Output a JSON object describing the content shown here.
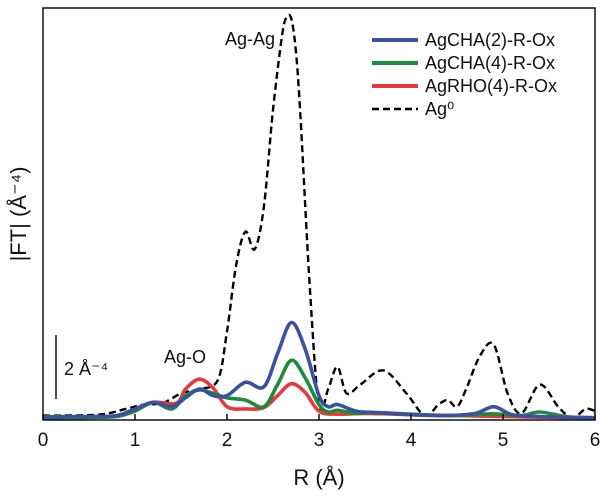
{
  "chart_data": {
    "type": "line",
    "title": "",
    "xlabel": "R (Å)",
    "ylabel": "|FT| (Å⁻⁴)",
    "xlim": [
      0,
      6
    ],
    "ylim": [
      0,
      9.3
    ],
    "xticks": [
      "0",
      "1",
      "2",
      "3",
      "4",
      "5",
      "6"
    ],
    "grid": false,
    "legend_position": "top-right",
    "annotations": {
      "peak_metal": "Ag-Ag",
      "peak_oxygen": "Ag-O",
      "scale_bar": "2 Å⁻⁴"
    },
    "series": [
      {
        "name": "AgCHA(2)-R-Ox",
        "color": "#3a50a0",
        "style": "solid",
        "x": [
          0,
          0.5,
          0.8,
          1.0,
          1.2,
          1.4,
          1.55,
          1.7,
          1.85,
          2.0,
          2.2,
          2.4,
          2.55,
          2.7,
          2.85,
          3.0,
          3.1,
          3.2,
          3.4,
          3.6,
          4.0,
          4.4,
          4.7,
          4.9,
          5.1,
          5.4,
          5.8,
          6.0
        ],
        "y": [
          0.07,
          0.08,
          0.1,
          0.25,
          0.4,
          0.3,
          0.5,
          0.7,
          0.55,
          0.55,
          0.85,
          0.75,
          1.5,
          2.2,
          1.6,
          0.55,
          0.3,
          0.35,
          0.2,
          0.17,
          0.12,
          0.1,
          0.15,
          0.3,
          0.12,
          0.08,
          0.06,
          0.05
        ]
      },
      {
        "name": "AgCHA(4)-R-Ox",
        "color": "#1e8a3c",
        "style": "solid",
        "x": [
          0,
          0.5,
          0.8,
          1.0,
          1.2,
          1.4,
          1.55,
          1.7,
          1.85,
          2.0,
          2.2,
          2.4,
          2.55,
          2.7,
          2.85,
          3.0,
          3.1,
          3.2,
          3.4,
          3.6,
          4.0,
          4.4,
          4.7,
          4.9,
          5.2,
          5.4,
          5.7,
          6.0
        ],
        "y": [
          0.05,
          0.06,
          0.08,
          0.2,
          0.4,
          0.25,
          0.55,
          0.68,
          0.6,
          0.5,
          0.45,
          0.3,
          0.8,
          1.35,
          0.95,
          0.35,
          0.18,
          0.22,
          0.15,
          0.17,
          0.13,
          0.1,
          0.12,
          0.14,
          0.1,
          0.18,
          0.07,
          0.05
        ]
      },
      {
        "name": "AgRHO(4)-R-Ox",
        "color": "#e8393a",
        "style": "solid",
        "x": [
          0,
          0.5,
          0.8,
          1.0,
          1.2,
          1.45,
          1.55,
          1.7,
          1.85,
          2.0,
          2.2,
          2.4,
          2.55,
          2.7,
          2.85,
          3.0,
          3.2,
          3.5,
          4.0,
          4.5,
          5.0,
          5.5,
          6.0
        ],
        "y": [
          0.05,
          0.06,
          0.1,
          0.22,
          0.4,
          0.38,
          0.7,
          0.92,
          0.72,
          0.3,
          0.25,
          0.28,
          0.55,
          0.82,
          0.62,
          0.2,
          0.13,
          0.15,
          0.12,
          0.1,
          0.08,
          0.06,
          0.05
        ]
      },
      {
        "name": "Ag⁰",
        "color": "#000000",
        "style": "dashed",
        "x": [
          0,
          0.6,
          0.9,
          1.1,
          1.3,
          1.5,
          1.7,
          1.9,
          2.0,
          2.1,
          2.2,
          2.3,
          2.4,
          2.5,
          2.6,
          2.65,
          2.7,
          2.75,
          2.8,
          2.9,
          3.0,
          3.1,
          3.2,
          3.3,
          3.45,
          3.7,
          3.95,
          4.15,
          4.3,
          4.4,
          4.5,
          4.6,
          4.75,
          4.9,
          5.05,
          5.2,
          5.4,
          5.6,
          5.75,
          5.9,
          6.0
        ],
        "y": [
          0.1,
          0.12,
          0.25,
          0.35,
          0.38,
          0.6,
          0.7,
          0.9,
          2.0,
          3.5,
          4.25,
          3.85,
          4.8,
          7.0,
          8.7,
          9.1,
          9.05,
          8.3,
          6.8,
          3.0,
          0.3,
          0.7,
          1.2,
          0.6,
          0.8,
          1.12,
          0.6,
          0.1,
          0.35,
          0.45,
          0.3,
          0.7,
          1.45,
          1.7,
          0.6,
          0.15,
          0.8,
          0.3,
          0.05,
          0.25,
          0.2
        ]
      }
    ]
  }
}
